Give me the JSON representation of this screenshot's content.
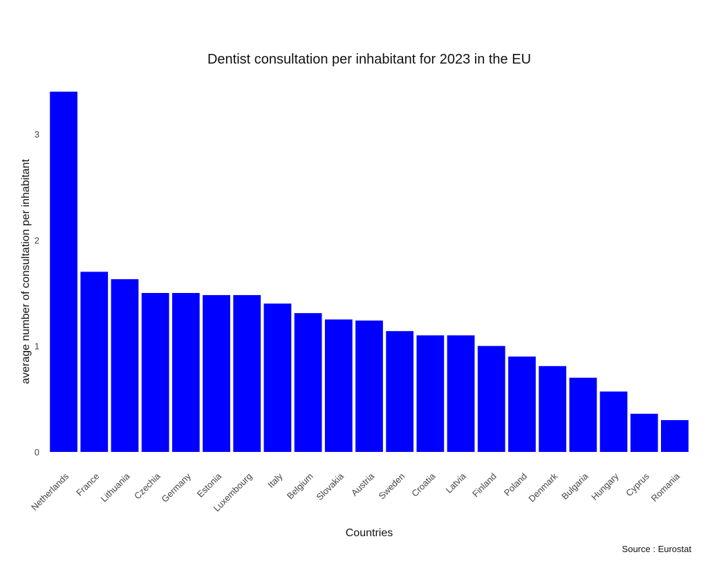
{
  "chart_data": {
    "type": "bar",
    "title": "Dentist consultation per inhabitant for 2023 in the EU",
    "xlabel": "Countries",
    "ylabel": "average number of consultation per inhabitant",
    "caption": "Source : Eurostat",
    "categories": [
      "Netherlands",
      "France",
      "Lithuania",
      "Czechia",
      "Germany",
      "Estonia",
      "Luxembourg",
      "Italy",
      "Belgium",
      "Slovakia",
      "Austria",
      "Sweden",
      "Croatia",
      "Latvia",
      "Finland",
      "Poland",
      "Denmark",
      "Bulgaria",
      "Hungary",
      "Cyprus",
      "Romania"
    ],
    "values": [
      3.4,
      1.7,
      1.63,
      1.5,
      1.5,
      1.48,
      1.48,
      1.4,
      1.31,
      1.25,
      1.24,
      1.14,
      1.1,
      1.1,
      1.0,
      0.9,
      0.81,
      0.7,
      0.57,
      0.36,
      0.3
    ],
    "yticks": [
      0,
      1,
      2,
      3
    ],
    "ylim": [
      0,
      3.4
    ],
    "bar_color": "#0000ff",
    "grid": false,
    "legend": "none"
  }
}
